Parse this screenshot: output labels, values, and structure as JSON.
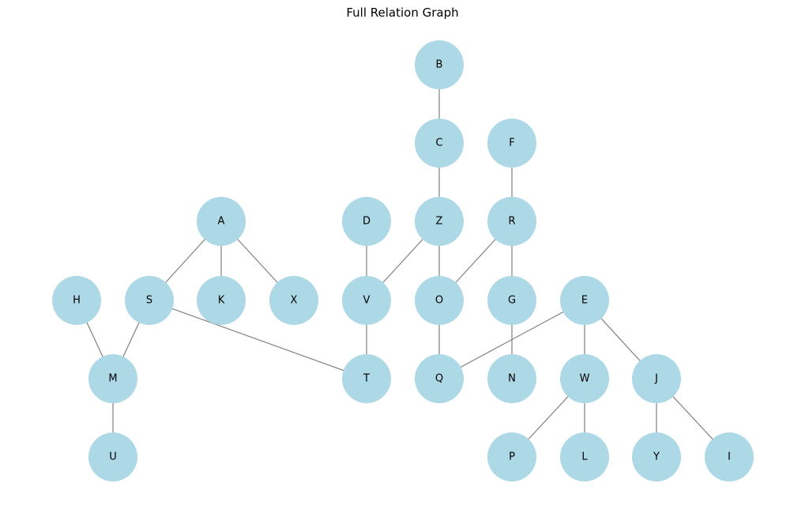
{
  "title": "Full Relation Graph",
  "colors": {
    "node_fill": "#add8e6",
    "edge": "#808080",
    "label": "#000000"
  },
  "nodes": [
    "B",
    "C",
    "F",
    "A",
    "D",
    "Z",
    "R",
    "H",
    "S",
    "K",
    "X",
    "V",
    "O",
    "G",
    "E",
    "M",
    "T",
    "Q",
    "N",
    "W",
    "J",
    "U",
    "P",
    "L",
    "Y",
    "I"
  ],
  "edges": [
    [
      "B",
      "C"
    ],
    [
      "C",
      "Z"
    ],
    [
      "F",
      "R"
    ],
    [
      "A",
      "S"
    ],
    [
      "A",
      "K"
    ],
    [
      "A",
      "X"
    ],
    [
      "D",
      "V"
    ],
    [
      "Z",
      "V"
    ],
    [
      "Z",
      "O"
    ],
    [
      "R",
      "O"
    ],
    [
      "R",
      "G"
    ],
    [
      "H",
      "M"
    ],
    [
      "S",
      "M"
    ],
    [
      "S",
      "T"
    ],
    [
      "V",
      "T"
    ],
    [
      "O",
      "Q"
    ],
    [
      "G",
      "N"
    ],
    [
      "E",
      "Q"
    ],
    [
      "E",
      "W"
    ],
    [
      "E",
      "J"
    ],
    [
      "M",
      "U"
    ],
    [
      "W",
      "P"
    ],
    [
      "W",
      "L"
    ],
    [
      "J",
      "Y"
    ],
    [
      "J",
      "I"
    ]
  ]
}
